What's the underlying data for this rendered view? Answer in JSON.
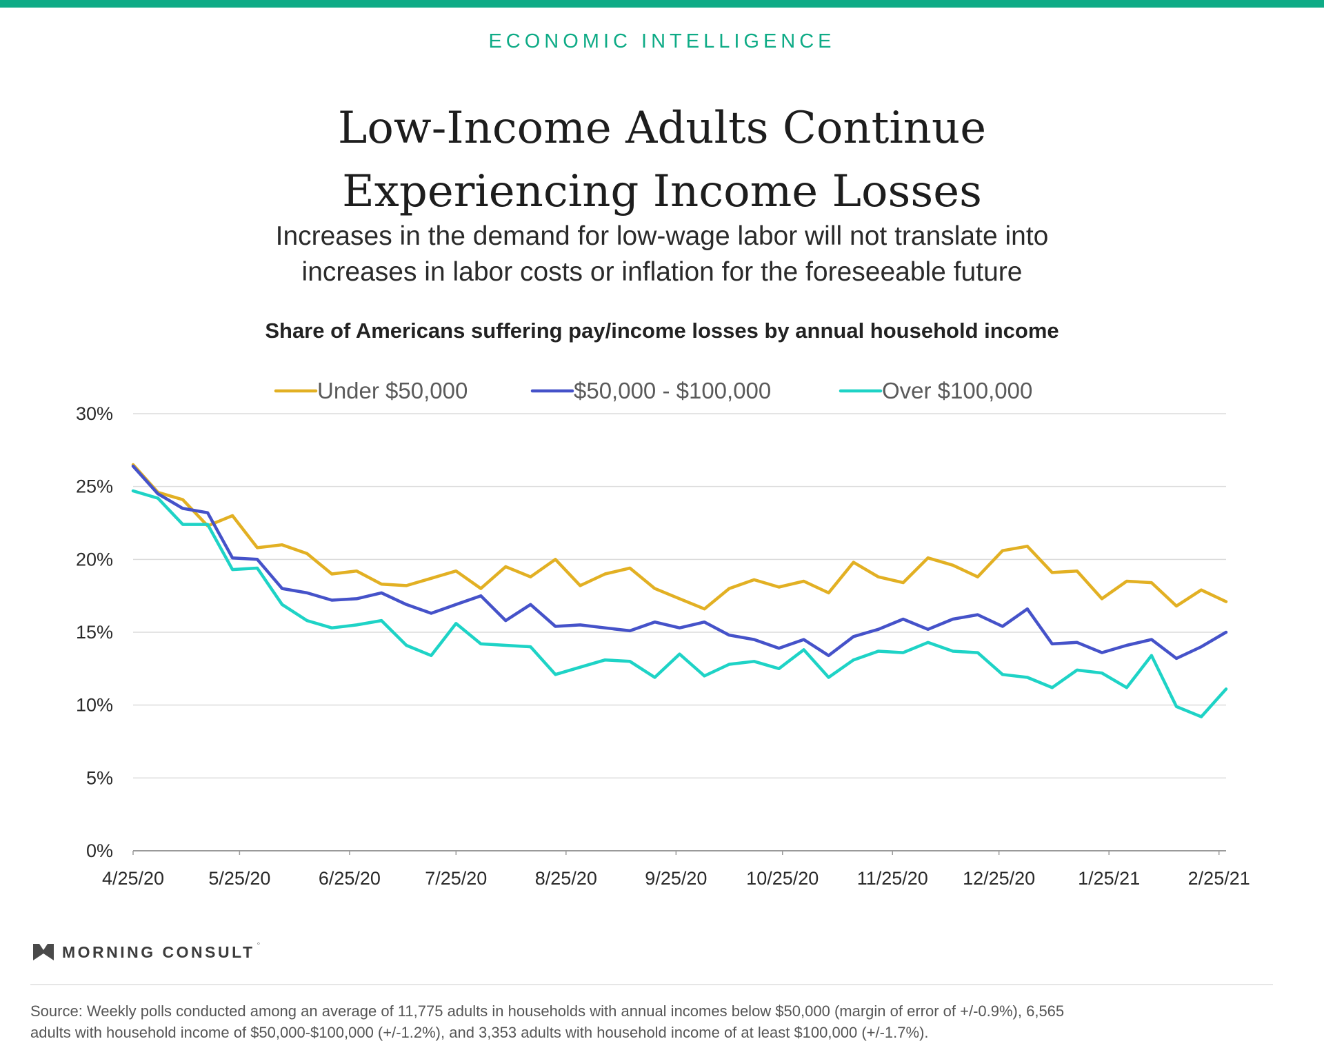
{
  "header": {
    "kicker": "ECONOMIC INTELLIGENCE",
    "accent_color": "#0eab86"
  },
  "title_line1": "Low-Income Adults Continue",
  "title_line2": "Experiencing Income Losses",
  "subtitle_line1": "Increases in the demand for low-wage labor will not translate into",
  "subtitle_line2": "increases in labor costs or inflation for the foreseeable future",
  "chart_data": {
    "type": "line",
    "title": "Share of Americans suffering pay/income losses by annual household income",
    "legend_position": "top-center",
    "grid": true,
    "xlabel": "",
    "ylabel": "",
    "x_ticks": [
      "4/25/20",
      "5/25/20",
      "6/25/20",
      "7/25/20",
      "8/25/20",
      "9/25/20",
      "10/25/20",
      "11/25/20",
      "12/25/20",
      "1/25/21",
      "2/25/21"
    ],
    "y_ticks": [
      "0%",
      "5%",
      "10%",
      "15%",
      "20%",
      "25%",
      "30%"
    ],
    "ylim": [
      0,
      30
    ],
    "x": [
      "2020-04-25",
      "2020-05-02",
      "2020-05-09",
      "2020-05-16",
      "2020-05-23",
      "2020-05-30",
      "2020-06-06",
      "2020-06-13",
      "2020-06-20",
      "2020-06-27",
      "2020-07-04",
      "2020-07-11",
      "2020-07-18",
      "2020-07-25",
      "2020-08-01",
      "2020-08-08",
      "2020-08-15",
      "2020-08-22",
      "2020-08-29",
      "2020-09-05",
      "2020-09-12",
      "2020-09-19",
      "2020-09-26",
      "2020-10-03",
      "2020-10-10",
      "2020-10-17",
      "2020-10-24",
      "2020-10-31",
      "2020-11-07",
      "2020-11-14",
      "2020-11-21",
      "2020-11-28",
      "2020-12-05",
      "2020-12-12",
      "2020-12-19",
      "2020-12-26",
      "2021-01-02",
      "2021-01-09",
      "2021-01-16",
      "2021-01-23",
      "2021-01-30",
      "2021-02-06",
      "2021-02-13",
      "2021-02-20",
      "2021-02-27"
    ],
    "series": [
      {
        "name": "Under $50,000",
        "color": "#e2b023",
        "values": [
          26.5,
          24.6,
          24.1,
          22.3,
          23.0,
          20.8,
          21.0,
          20.4,
          19.0,
          19.2,
          18.3,
          18.2,
          18.7,
          19.2,
          18.0,
          19.5,
          18.8,
          20.0,
          18.2,
          19.0,
          19.4,
          18.0,
          17.3,
          16.6,
          18.0,
          18.6,
          18.1,
          18.5,
          17.7,
          19.8,
          18.8,
          18.4,
          20.1,
          19.6,
          18.8,
          20.6,
          20.9,
          19.1,
          19.2,
          17.3,
          18.5,
          18.4,
          16.8,
          17.9,
          17.1
        ]
      },
      {
        "name": "$50,000 - $100,000",
        "color": "#4552c9",
        "values": [
          26.4,
          24.5,
          23.5,
          23.2,
          20.1,
          20.0,
          18.0,
          17.7,
          17.2,
          17.3,
          17.7,
          16.9,
          16.3,
          16.9,
          17.5,
          15.8,
          16.9,
          15.4,
          15.5,
          15.3,
          15.1,
          15.7,
          15.3,
          15.7,
          14.8,
          14.5,
          13.9,
          14.5,
          13.4,
          14.7,
          15.2,
          15.9,
          15.2,
          15.9,
          16.2,
          15.4,
          16.6,
          14.2,
          14.3,
          13.6,
          14.1,
          14.5,
          13.2,
          14.0,
          15.0
        ]
      },
      {
        "name": "Over $100,000",
        "color": "#1ed3c6",
        "values": [
          24.7,
          24.2,
          22.4,
          22.4,
          19.3,
          19.4,
          16.9,
          15.8,
          15.3,
          15.5,
          15.8,
          14.1,
          13.4,
          15.6,
          14.2,
          14.1,
          14.0,
          12.1,
          12.6,
          13.1,
          13.0,
          11.9,
          13.5,
          12.0,
          12.8,
          13.0,
          12.5,
          13.8,
          11.9,
          13.1,
          13.7,
          13.6,
          14.3,
          13.7,
          13.6,
          12.1,
          11.9,
          11.2,
          12.4,
          12.2,
          11.2,
          13.4,
          9.9,
          9.2,
          11.1
        ]
      }
    ]
  },
  "brand": {
    "name": "MORNING CONSULT",
    "mark": "°"
  },
  "source_line1": "Source: Weekly polls conducted among an average of 11,775 adults in households with annual incomes below $50,000 (margin of error of +/-0.9%), 6,565",
  "source_line2": "adults with household income of $50,000-$100,000 (+/-1.2%), and 3,353 adults with household income of at least $100,000 (+/-1.7%)."
}
